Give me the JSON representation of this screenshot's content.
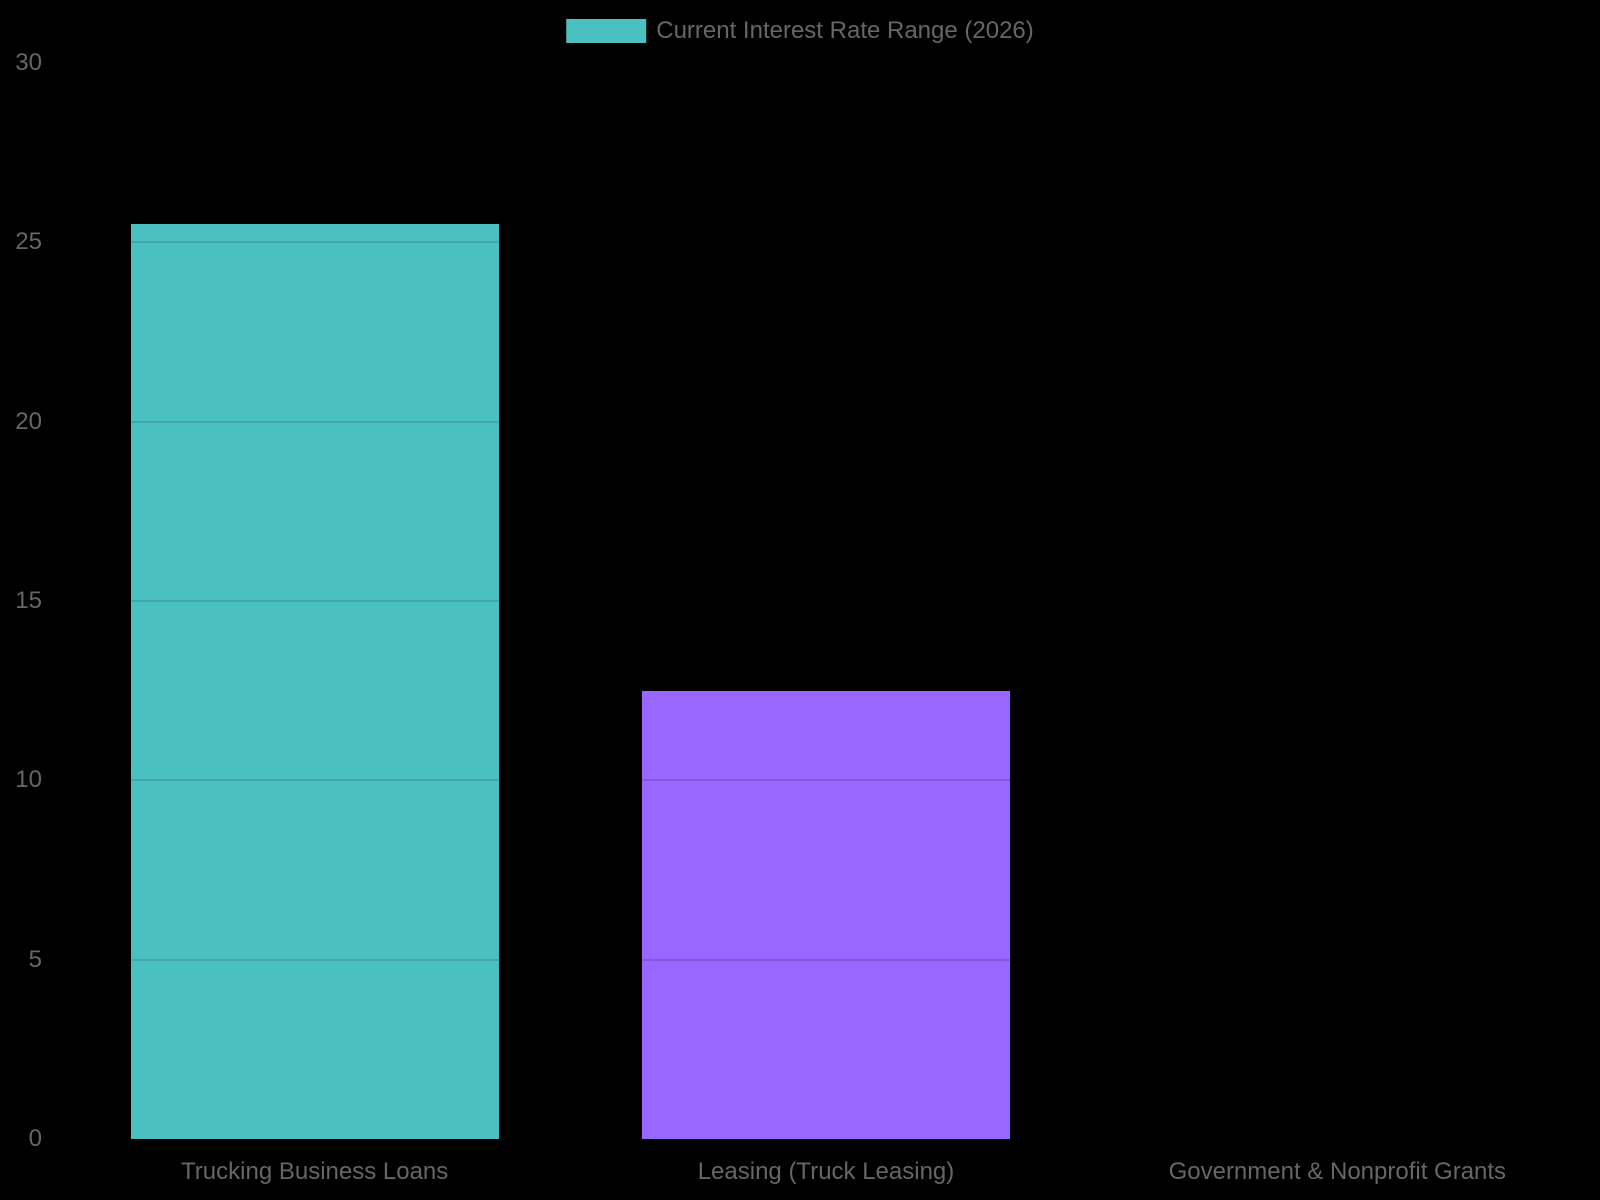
{
  "legend": {
    "label": "Current Interest Rate Range (2026)",
    "swatch_color": "#4bc0c0"
  },
  "colors": {
    "background": "#000000",
    "text": "#666666",
    "teal_bar": "#4bc0c0",
    "purple_bar": "#9966ff"
  },
  "chart_data": {
    "type": "bar",
    "title": "",
    "categories": [
      "Trucking Business Loans",
      "Leasing (Truck Leasing)",
      "Government & Nonprofit Grants"
    ],
    "series": [
      {
        "name": "Current Interest Rate Range (2026)",
        "values": [
          25.5,
          12.5,
          0
        ]
      }
    ],
    "bar_colors": [
      "#4bc0c0",
      "#9966ff"
    ],
    "xlabel": "",
    "ylabel": "",
    "ylim": [
      0,
      30
    ],
    "y_ticks": [
      0,
      5,
      10,
      15,
      20,
      25,
      30
    ],
    "grid": true,
    "legend_position": "top"
  }
}
